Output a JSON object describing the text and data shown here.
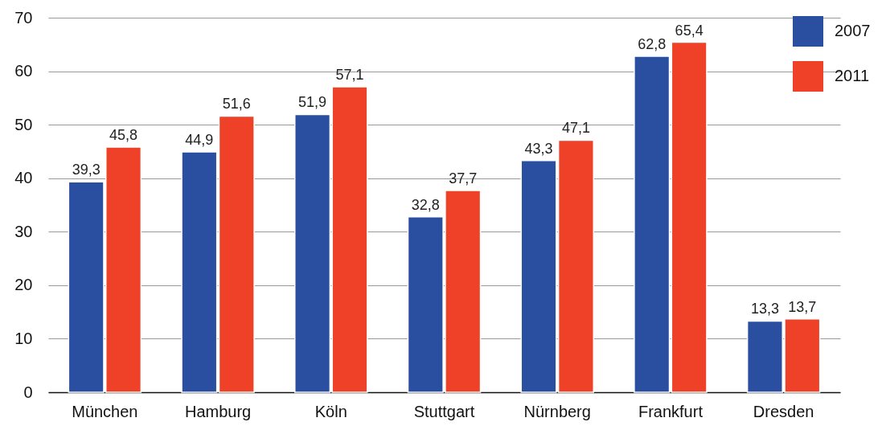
{
  "chart_data": {
    "type": "bar",
    "categories": [
      "München",
      "Hamburg",
      "Köln",
      "Stuttgart",
      "Nürnberg",
      "Frankfurt",
      "Dresden"
    ],
    "series": [
      {
        "name": "2007",
        "color": "#2a4ea0",
        "values": [
          39.3,
          44.9,
          51.9,
          32.8,
          43.3,
          62.8,
          13.3
        ],
        "value_labels": [
          "39,3",
          "44,9",
          "51,9",
          "32,8",
          "43,3",
          "62,8",
          "13,3"
        ]
      },
      {
        "name": "2011",
        "color": "#ee4127",
        "values": [
          45.8,
          51.6,
          57.1,
          37.7,
          47.1,
          65.4,
          13.7
        ],
        "value_labels": [
          "45,8",
          "51,6",
          "57,1",
          "37,7",
          "47,1",
          "65,4",
          "13,7"
        ]
      }
    ],
    "ylim": [
      0,
      70
    ],
    "yticks": [
      0,
      10,
      20,
      30,
      40,
      50,
      60,
      70
    ],
    "grid": "y",
    "legend": "top right"
  }
}
